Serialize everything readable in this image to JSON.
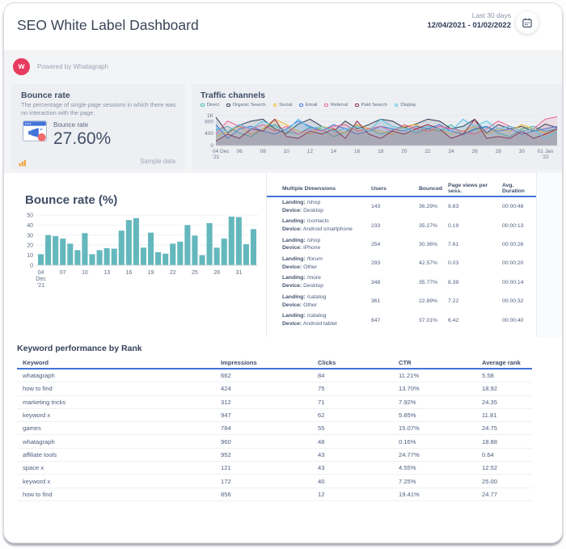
{
  "header": {
    "title": "SEO White Label Dashboard",
    "range_label": "Last 30 days",
    "range_value": "12/04/2021 - 01/02/2022"
  },
  "powered_by": {
    "text": "Powered by Whatagraph",
    "logo_letter": "w",
    "logo_color": "#e63a5f"
  },
  "bounce_widget": {
    "title": "Bounce rate",
    "description": "The percentage of single-page sessions in which there was no interaction with the page.",
    "metric_label": "Bounce rate",
    "metric_value": "27.60%",
    "sample_label": "Sample data"
  },
  "traffic_widget": {
    "title": "Traffic channels"
  },
  "keyword_section": {
    "title": "Keyword performance by Rank",
    "headers": [
      "Keyword",
      "Impressions",
      "Clicks",
      "CTR",
      "Average rank"
    ],
    "rows": [
      [
        "whatagraph",
        "662",
        "84",
        "11.21%",
        "5.58"
      ],
      [
        "how to find",
        "424",
        "75",
        "13.70%",
        "18.92"
      ],
      [
        "marketing tricks",
        "312",
        "71",
        "7.92%",
        "24.35"
      ],
      [
        "keyword x",
        "947",
        "62",
        "5.85%",
        "11.81"
      ],
      [
        "games",
        "784",
        "55",
        "15.07%",
        "24.75"
      ],
      [
        "whatagraph",
        "960",
        "48",
        "0.16%",
        "18.88"
      ],
      [
        "affiliate tools",
        "952",
        "43",
        "24.77%",
        "0.64"
      ],
      [
        "space x",
        "121",
        "43",
        "4.55%",
        "12.52"
      ],
      [
        "keyword x",
        "172",
        "40",
        "7.25%",
        "25.00"
      ],
      [
        "how to find",
        "856",
        "12",
        "19.41%",
        "24.77"
      ]
    ]
  },
  "dimensions_table": {
    "headers": [
      "Multiple Dimensions",
      "Users",
      "Bounced",
      "Page views per sess.",
      "Avg. Duration"
    ],
    "landing_label": "Landing:",
    "device_label": "Device:",
    "rows": [
      {
        "landing": "/shop",
        "device": "Desktop",
        "users": "143",
        "bounced": "36.29%",
        "pages": "9.83",
        "duration": "00:00:48"
      },
      {
        "landing": "/contacts",
        "device": "Android smartphone",
        "users": "233",
        "bounced": "35.27%",
        "pages": "0.19",
        "duration": "00:00:13"
      },
      {
        "landing": "/shop",
        "device": "iPhone",
        "users": "254",
        "bounced": "30.36%",
        "pages": "7.61",
        "duration": "00:00:26"
      },
      {
        "landing": "/forum",
        "device": "Other",
        "users": "293",
        "bounced": "42.57%",
        "pages": "0.03",
        "duration": "00:00:20"
      },
      {
        "landing": "/more",
        "device": "Desktop",
        "users": "348",
        "bounced": "35.77%",
        "pages": "8.39",
        "duration": "00:00:14"
      },
      {
        "landing": "/catalog",
        "device": "Other",
        "users": "361",
        "bounced": "22.89%",
        "pages": "7.22",
        "duration": "00:00:32"
      },
      {
        "landing": "/catalog",
        "device": "Android tablet",
        "users": "647",
        "bounced": "37.01%",
        "pages": "6.42",
        "duration": "00:00:40"
      }
    ]
  },
  "colors": {
    "accent_blue": "#4273d9",
    "bar_teal": "#64b8bd",
    "brand_red": "#e63a5f",
    "band_gray": "#f3f4f6",
    "widget_gray": "#edeff2",
    "text_dark": "#3f4d66"
  },
  "chart_data": [
    {
      "type": "line",
      "title": "Traffic channels",
      "legend_position": "top",
      "grid": true,
      "ylim": [
        0,
        1000
      ],
      "yticks": [
        {
          "v": 0,
          "label": "0"
        },
        {
          "v": 400,
          "label": "400"
        },
        {
          "v": 800,
          "label": "800"
        },
        {
          "v": 1000,
          "label": "1K"
        }
      ],
      "x": [
        "Dec 04",
        "Dec 05",
        "Dec 06",
        "Dec 07",
        "Dec 08",
        "Dec 09",
        "Dec 10",
        "Dec 11",
        "Dec 12",
        "Dec 13",
        "Dec 14",
        "Dec 15",
        "Dec 16",
        "Dec 17",
        "Dec 18",
        "Dec 19",
        "Dec 20",
        "Dec 21",
        "Dec 22",
        "Dec 23",
        "Dec 24",
        "Dec 25",
        "Dec 26",
        "Dec 27",
        "Dec 28",
        "Dec 29",
        "Dec 30",
        "Dec 31",
        "Jan 01",
        "Jan 02"
      ],
      "x_tick_labels": [
        {
          "i": 0,
          "lines": [
            "04 Dec",
            "'21"
          ]
        },
        {
          "i": 2,
          "lines": [
            "06"
          ]
        },
        {
          "i": 4,
          "lines": [
            "08"
          ]
        },
        {
          "i": 6,
          "lines": [
            "10"
          ]
        },
        {
          "i": 8,
          "lines": [
            "12"
          ]
        },
        {
          "i": 10,
          "lines": [
            "14"
          ]
        },
        {
          "i": 12,
          "lines": [
            "16"
          ]
        },
        {
          "i": 14,
          "lines": [
            "18"
          ]
        },
        {
          "i": 16,
          "lines": [
            "20"
          ]
        },
        {
          "i": 18,
          "lines": [
            "22"
          ]
        },
        {
          "i": 20,
          "lines": [
            "24"
          ]
        },
        {
          "i": 22,
          "lines": [
            "26"
          ]
        },
        {
          "i": 24,
          "lines": [
            "28"
          ]
        },
        {
          "i": 26,
          "lines": [
            "30"
          ]
        },
        {
          "i": 28,
          "lines": [
            "01 Jan",
            "'22"
          ]
        }
      ],
      "series": [
        {
          "name": "Direct",
          "color": "#3ab7ad",
          "values": [
            520,
            640,
            420,
            300,
            560,
            700,
            480,
            380,
            620,
            540,
            300,
            450,
            700,
            560,
            380,
            520,
            640,
            420,
            560,
            480,
            700,
            360,
            540,
            620,
            420,
            300,
            560,
            640,
            480,
            560
          ]
        },
        {
          "name": "Organic Search",
          "color": "#2e3a52",
          "values": [
            950,
            420,
            680,
            820,
            880,
            560,
            400,
            720,
            880,
            640,
            480,
            820,
            560,
            700,
            880,
            820,
            600,
            720,
            880,
            820,
            560,
            640,
            880,
            420,
            700,
            560,
            640,
            480,
            720,
            600
          ]
        },
        {
          "name": "Social",
          "color": "#f1b32b",
          "values": [
            300,
            480,
            640,
            380,
            560,
            880,
            700,
            480,
            380,
            640,
            560,
            420,
            700,
            560,
            480,
            380,
            640,
            700,
            480,
            560,
            380,
            480,
            640,
            380,
            560,
            480,
            700,
            560,
            420,
            480
          ]
        },
        {
          "name": "Email",
          "color": "#4273d9",
          "values": [
            700,
            240,
            560,
            640,
            480,
            380,
            560,
            820,
            640,
            480,
            700,
            560,
            380,
            480,
            640,
            560,
            480,
            640,
            560,
            700,
            480,
            380,
            560,
            640,
            480,
            560,
            380,
            480,
            560,
            640
          ]
        },
        {
          "name": "Referral",
          "color": "#ec5f90",
          "values": [
            380,
            820,
            640,
            560,
            700,
            480,
            640,
            380,
            560,
            480,
            640,
            700,
            480,
            560,
            640,
            480,
            700,
            560,
            480,
            640,
            560,
            480,
            380,
            560,
            820,
            640,
            480,
            560,
            880,
            960
          ]
        },
        {
          "name": "Paid Search",
          "color": "#8f2a48",
          "values": [
            150,
            380,
            240,
            560,
            480,
            880,
            300,
            240,
            480,
            380,
            560,
            240,
            820,
            380,
            240,
            480,
            380,
            560,
            700,
            560,
            240,
            380,
            880,
            240,
            300,
            240,
            480,
            240,
            380,
            560
          ]
        },
        {
          "name": "Display",
          "color": "#55c3e8",
          "values": [
            600,
            480,
            700,
            560,
            820,
            640,
            480,
            880,
            560,
            640,
            480,
            560,
            640,
            480,
            880,
            640,
            560,
            480,
            640,
            560,
            480,
            880,
            640,
            820,
            560,
            640,
            480,
            560,
            240,
            480
          ]
        }
      ]
    },
    {
      "type": "bar",
      "title": "Bounce rate (%)",
      "bar_color": "#64b8bd",
      "grid": true,
      "ylim": [
        0,
        50
      ],
      "yticks": [
        {
          "v": 0,
          "label": "0"
        },
        {
          "v": 10,
          "label": "10"
        },
        {
          "v": 20,
          "label": "20"
        },
        {
          "v": 30,
          "label": "30"
        },
        {
          "v": 40,
          "label": "40"
        },
        {
          "v": 50,
          "label": "50"
        }
      ],
      "categories": [
        "Dec 04",
        "Dec 05",
        "Dec 06",
        "Dec 07",
        "Dec 08",
        "Dec 09",
        "Dec 10",
        "Dec 11",
        "Dec 12",
        "Dec 13",
        "Dec 14",
        "Dec 15",
        "Dec 16",
        "Dec 17",
        "Dec 18",
        "Dec 19",
        "Dec 20",
        "Dec 21",
        "Dec 22",
        "Dec 23",
        "Dec 24",
        "Dec 25",
        "Dec 26",
        "Dec 27",
        "Dec 28",
        "Dec 29",
        "Dec 30",
        "Dec 31",
        "Jan 01",
        "Jan 02"
      ],
      "values": [
        11,
        30,
        29,
        26.5,
        21.5,
        15,
        32,
        11,
        15,
        17,
        16.5,
        34.5,
        45,
        47,
        17.5,
        32.5,
        13,
        11.5,
        21.5,
        23.5,
        40,
        29.5,
        10,
        42,
        17.5,
        26.5,
        48.5,
        48,
        21,
        36
      ],
      "x_tick_labels": [
        {
          "i": 0,
          "lines": [
            "04",
            "Dec",
            "'21"
          ]
        },
        {
          "i": 3,
          "lines": [
            "07"
          ]
        },
        {
          "i": 6,
          "lines": [
            "10"
          ]
        },
        {
          "i": 9,
          "lines": [
            "13"
          ]
        },
        {
          "i": 12,
          "lines": [
            "16"
          ]
        },
        {
          "i": 15,
          "lines": [
            "19"
          ]
        },
        {
          "i": 18,
          "lines": [
            "22"
          ]
        },
        {
          "i": 21,
          "lines": [
            "25"
          ]
        },
        {
          "i": 24,
          "lines": [
            "28"
          ]
        },
        {
          "i": 27,
          "lines": [
            "31"
          ]
        }
      ]
    }
  ]
}
